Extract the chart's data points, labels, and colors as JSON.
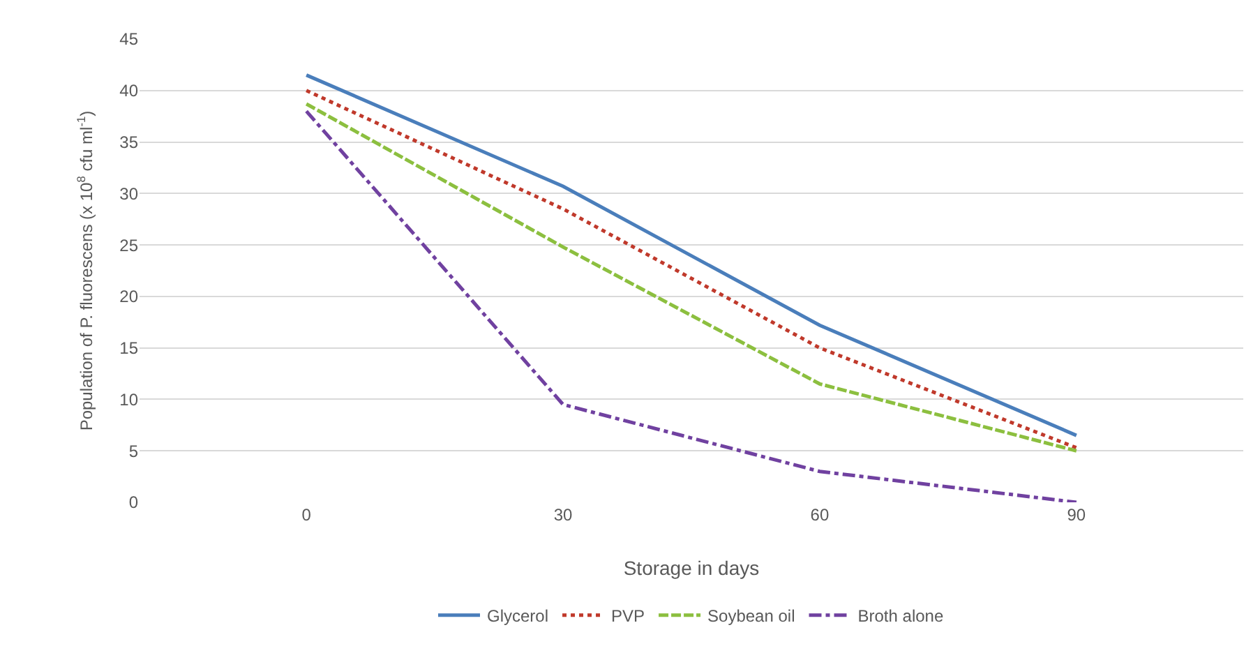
{
  "chart_data": {
    "type": "line",
    "xlabel": "Storage in days",
    "ylabel": "Population of P. fluorescens (x 10$^{8}$ cfu ml$^{-1}$)",
    "categories": [
      "0",
      "30",
      "60",
      "90"
    ],
    "series": [
      {
        "name": "Glycerol",
        "color": "#4a7ebb",
        "line_style": "solid",
        "values": [
          41.5,
          30.7,
          17.2,
          6.5
        ]
      },
      {
        "name": "PVP",
        "color": "#c0392b",
        "line_style": "dotted",
        "values": [
          40,
          28.5,
          15,
          5.3
        ]
      },
      {
        "name": "Soybean oil",
        "color": "#8cbf3f",
        "line_style": "dashed",
        "values": [
          38.7,
          24.8,
          11.5,
          5
        ]
      },
      {
        "name": "Broth alone",
        "color": "#7041a0",
        "line_style": "dashdot",
        "values": [
          38,
          9.5,
          3,
          0
        ]
      }
    ],
    "ylim": [
      0,
      45
    ],
    "yticks": [
      0,
      5,
      10,
      15,
      20,
      25,
      30,
      35,
      40,
      45
    ],
    "grid": "y",
    "legend": "bottom",
    "marker": "none"
  }
}
